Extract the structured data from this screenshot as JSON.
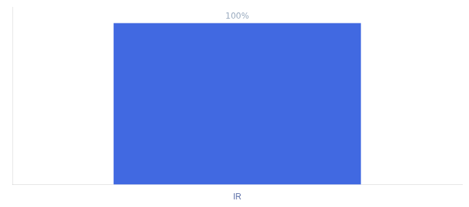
{
  "chart_data": {
    "type": "bar",
    "categories": [
      "IR"
    ],
    "values": [
      100
    ],
    "value_labels": [
      "100%"
    ],
    "data_labels": true,
    "color": "#4169E1",
    "ylim": [
      0,
      110
    ],
    "grid": false,
    "tick_labels": "x"
  }
}
